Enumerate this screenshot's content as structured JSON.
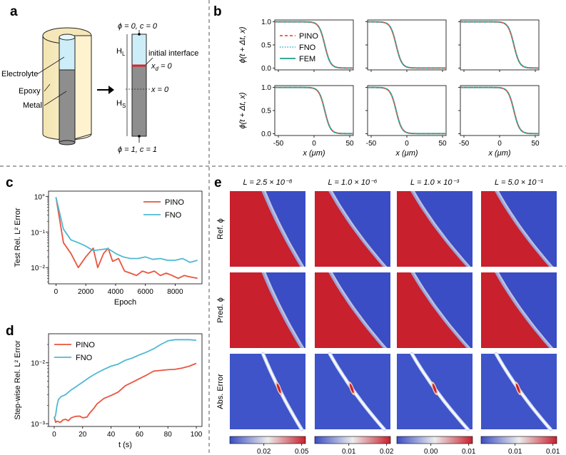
{
  "colors": {
    "pino": "#e8553f",
    "fno": "#4fb9d4",
    "fem": "#1a9e8a",
    "red": "#c8202c",
    "blue": "#3a4dc4",
    "white": "#ffffff",
    "gray": "#8a8a8a",
    "epoxy": "#fbf0cc",
    "electrolyte": "#cdeef9"
  },
  "panels": {
    "a": "a",
    "b": "b",
    "c": "c",
    "d": "d",
    "e": "e"
  },
  "schematic": {
    "labels": [
      "Electrolyte",
      "Epoxy",
      "Metal"
    ],
    "top": "ϕ = 0, c = 0",
    "bottom": "ϕ = 1, c = 1",
    "HL": "Hₗ",
    "HS": "Hₛ",
    "HL_main": "H",
    "HL_sub": "L",
    "HS_main": "H",
    "HS_sub": "S",
    "initial_interface": "initial interface",
    "xd": "x",
    "xd_sub": "d",
    "xd_rest": " = 0",
    "x0": "x = 0"
  },
  "chart_data": [
    {
      "id": "b",
      "type": "line",
      "title": "",
      "xlabel": "x (μm)",
      "ylabel": "ϕ(t + Δt, x)",
      "xlim": [
        -55,
        55
      ],
      "ylim": [
        -0.04,
        1.04
      ],
      "xticks": [
        "-50",
        "0",
        "50"
      ],
      "yticks": [
        "0.0",
        "0.5",
        "1.0"
      ],
      "legend": [
        "PINO",
        "FNO",
        "FEM"
      ],
      "legend_position": "left",
      "interface_centers": [
        [
          15,
          -15,
          20
        ],
        [
          15,
          -15,
          20
        ]
      ],
      "interface_width": 4
    },
    {
      "id": "c",
      "type": "line",
      "xlabel": "Epoch",
      "ylabel": "Test Rel. L² Error",
      "yscale": "log",
      "xlim": [
        -500,
        9800
      ],
      "ylim": [
        0.0035,
        1.4
      ],
      "xticks": [
        "0",
        "2000",
        "4000",
        "6000",
        "8000"
      ],
      "yticks": [
        "10°",
        "10⁻¹",
        "10⁻²"
      ],
      "legend_position": "top-right",
      "series": [
        {
          "name": "PINO",
          "x": [
            0,
            500,
            1000,
            1500,
            2000,
            2500,
            2800,
            3200,
            3500,
            3800,
            4200,
            4600,
            5000,
            5400,
            5800,
            6200,
            6600,
            7000,
            7400,
            7800,
            8200,
            8600,
            9000,
            9500
          ],
          "values": [
            0.95,
            0.05,
            0.025,
            0.01,
            0.02,
            0.035,
            0.01,
            0.025,
            0.035,
            0.015,
            0.018,
            0.008,
            0.007,
            0.006,
            0.008,
            0.007,
            0.008,
            0.006,
            0.007,
            0.006,
            0.005,
            0.006,
            0.0055,
            0.005
          ]
        },
        {
          "name": "FNO",
          "x": [
            0,
            500,
            1000,
            1500,
            2000,
            2500,
            3000,
            3500,
            4000,
            4500,
            5000,
            5500,
            6000,
            6500,
            7000,
            7500,
            8000,
            8500,
            9000,
            9500
          ],
          "values": [
            0.95,
            0.12,
            0.06,
            0.05,
            0.04,
            0.03,
            0.032,
            0.034,
            0.025,
            0.02,
            0.018,
            0.018,
            0.02,
            0.017,
            0.018,
            0.016,
            0.016,
            0.018,
            0.014,
            0.016
          ]
        }
      ]
    },
    {
      "id": "d",
      "type": "line",
      "xlabel": "t (s)",
      "ylabel": "Step-wise Rel. L² Error",
      "yscale": "log",
      "xlim": [
        -4,
        104
      ],
      "ylim": [
        0.0009,
        0.03
      ],
      "xticks": [
        "0",
        "20",
        "40",
        "60",
        "80",
        "100"
      ],
      "yticks": [
        "10⁻²",
        "10⁻³"
      ],
      "legend_position": "top-left",
      "series": [
        {
          "name": "PINO",
          "x": [
            0,
            1,
            2,
            3,
            4,
            5,
            6,
            8,
            10,
            12,
            15,
            18,
            20,
            23,
            25,
            28,
            30,
            35,
            40,
            45,
            50,
            55,
            60,
            65,
            70,
            75,
            80,
            85,
            90,
            95,
            100
          ],
          "values": [
            0.0013,
            0.00105,
            0.0011,
            0.00108,
            0.00105,
            0.00108,
            0.00115,
            0.00118,
            0.00112,
            0.00125,
            0.00132,
            0.00133,
            0.00125,
            0.00128,
            0.0015,
            0.0018,
            0.0021,
            0.0026,
            0.0029,
            0.0033,
            0.0042,
            0.0048,
            0.0055,
            0.0063,
            0.0073,
            0.0075,
            0.0077,
            0.0078,
            0.0082,
            0.0088,
            0.0098
          ]
        },
        {
          "name": "FNO",
          "x": [
            0,
            1,
            2,
            3,
            5,
            8,
            10,
            12,
            15,
            20,
            25,
            30,
            35,
            40,
            45,
            50,
            55,
            60,
            65,
            70,
            75,
            80,
            85,
            90,
            95,
            100
          ],
          "values": [
            0.0012,
            0.0014,
            0.002,
            0.0025,
            0.0028,
            0.003,
            0.0033,
            0.0036,
            0.004,
            0.0048,
            0.0058,
            0.0068,
            0.0078,
            0.0088,
            0.0095,
            0.011,
            0.012,
            0.0135,
            0.015,
            0.017,
            0.02,
            0.023,
            0.024,
            0.024,
            0.024,
            0.0235
          ]
        }
      ]
    },
    {
      "id": "e",
      "type": "heatmap",
      "column_titles": [
        "L = 2.5 × 10⁻⁸",
        "L = 1.0 × 10⁻⁶",
        "L = 1.0 × 10⁻³",
        "L = 5.0 × 10⁻¹"
      ],
      "row_labels": [
        "Ref. ϕ",
        "Pred. ϕ",
        "Abs. Error"
      ],
      "colorbars": [
        {
          "ticks": [
            "0.02",
            "0.05"
          ]
        },
        {
          "ticks": [
            "0.01",
            "0.02"
          ]
        },
        {
          "ticks": [
            "0.00",
            "0.01"
          ]
        },
        {
          "ticks": [
            "0.01",
            "0.01"
          ]
        }
      ],
      "fronts": [
        {
          "x_top": 0.42,
          "x_bottom": 0.93,
          "curvature": 0.1
        },
        {
          "x_top": 0.18,
          "x_bottom": 0.9,
          "curvature": 0.16
        },
        {
          "x_top": 0.18,
          "x_bottom": 0.92,
          "curvature": 0.16
        },
        {
          "x_top": 0.18,
          "x_bottom": 0.9,
          "curvature": 0.16
        }
      ]
    }
  ]
}
